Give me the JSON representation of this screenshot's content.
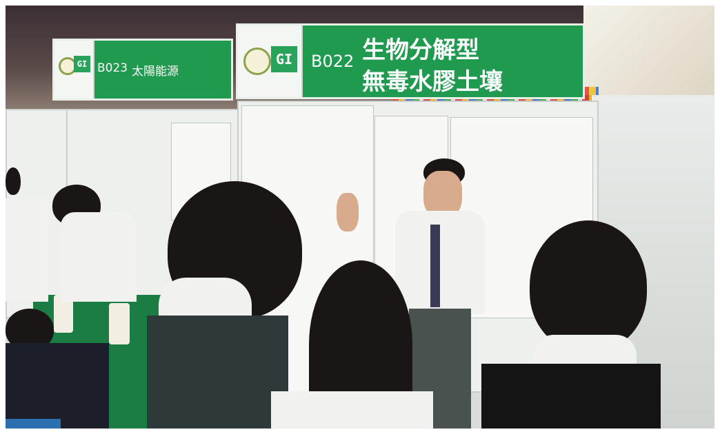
{
  "scene": {
    "colors": {
      "booth_green": "#1f9a4e",
      "sign_text": "#ffffff",
      "table_green": "#1b7d44"
    }
  },
  "signs": {
    "left": {
      "logo": "GI",
      "code": "B023",
      "title": "太陽能源"
    },
    "main": {
      "logo": "GI",
      "code": "B022",
      "title_line1": "生物分解型",
      "title_line2": "無毒水膠土壤"
    }
  }
}
